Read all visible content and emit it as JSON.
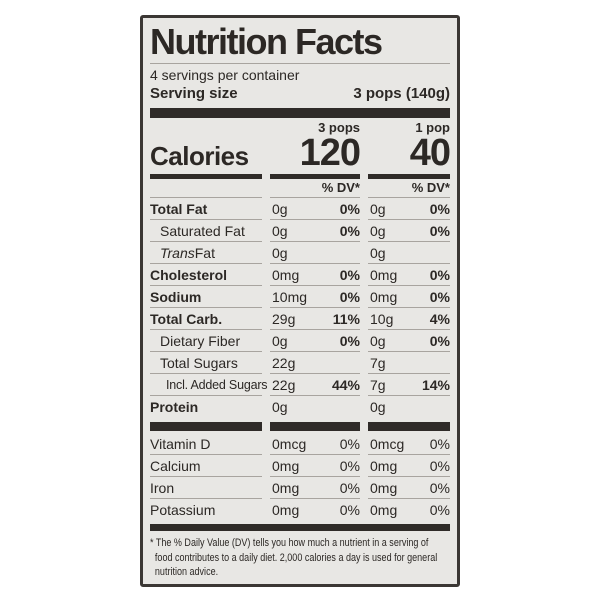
{
  "colors": {
    "page_bg": "#ffffff",
    "label_bg": "#e8e7e4",
    "border": "#3b3734",
    "thick_bar": "#2f2b28",
    "hairline": "#a8a49f",
    "text": "#2c2825"
  },
  "label": {
    "title": "Nutrition Facts",
    "servings_per_container": "4 servings per container",
    "serving_size": {
      "label": "Serving size",
      "value": "3 pops (140g)"
    },
    "columns": {
      "col1_header": "3 pops",
      "col2_header": "1 pop"
    },
    "calories": {
      "label": "Calories",
      "col1_value": "120",
      "col2_value": "40"
    },
    "dv_header": "% DV*",
    "nutrients": [
      {
        "name": "Total Fat",
        "c1": {
          "amount": "0g",
          "dv": "0%"
        },
        "c2": {
          "amount": "0g",
          "dv": "0%"
        }
      },
      {
        "name": "Saturated Fat",
        "c1": {
          "amount": "0g",
          "dv": "0%"
        },
        "c2": {
          "amount": "0g",
          "dv": "0%"
        }
      },
      {
        "name_italic": "Trans",
        "name_rest": " Fat",
        "c1": {
          "amount": "0g",
          "dv": ""
        },
        "c2": {
          "amount": "0g",
          "dv": ""
        }
      },
      {
        "name": "Cholesterol",
        "c1": {
          "amount": "0mg",
          "dv": "0%"
        },
        "c2": {
          "amount": "0mg",
          "dv": "0%"
        }
      },
      {
        "name": "Sodium",
        "c1": {
          "amount": "10mg",
          "dv": "0%"
        },
        "c2": {
          "amount": "0mg",
          "dv": "0%"
        }
      },
      {
        "name": "Total Carb.",
        "c1": {
          "amount": "29g",
          "dv": "11%"
        },
        "c2": {
          "amount": "10g",
          "dv": "4%"
        }
      },
      {
        "name": "Dietary Fiber",
        "c1": {
          "amount": "0g",
          "dv": "0%"
        },
        "c2": {
          "amount": "0g",
          "dv": "0%"
        }
      },
      {
        "name": "Total Sugars",
        "c1": {
          "amount": "22g",
          "dv": ""
        },
        "c2": {
          "amount": "7g",
          "dv": ""
        }
      },
      {
        "name": "Incl. Added Sugars",
        "c1": {
          "amount": "22g",
          "dv": "44%"
        },
        "c2": {
          "amount": "7g",
          "dv": "14%"
        }
      },
      {
        "name": "Protein",
        "c1": {
          "amount": "0g",
          "dv": ""
        },
        "c2": {
          "amount": "0g",
          "dv": ""
        }
      }
    ],
    "vitamins": [
      {
        "name": "Vitamin D",
        "c1": {
          "amount": "0mcg",
          "dv": "0%"
        },
        "c2": {
          "amount": "0mcg",
          "dv": "0%"
        }
      },
      {
        "name": "Calcium",
        "c1": {
          "amount": "0mg",
          "dv": "0%"
        },
        "c2": {
          "amount": "0mg",
          "dv": "0%"
        }
      },
      {
        "name": "Iron",
        "c1": {
          "amount": "0mg",
          "dv": "0%"
        },
        "c2": {
          "amount": "0mg",
          "dv": "0%"
        }
      },
      {
        "name": "Potassium",
        "c1": {
          "amount": "0mg",
          "dv": "0%"
        },
        "c2": {
          "amount": "0mg",
          "dv": "0%"
        }
      }
    ],
    "footnote_lines": [
      "* The % Daily Value (DV) tells you how much a nutrient in a serving of",
      "food contributes to a daily diet. 2,000 calories a day is used for general",
      "nutrition advice."
    ]
  }
}
